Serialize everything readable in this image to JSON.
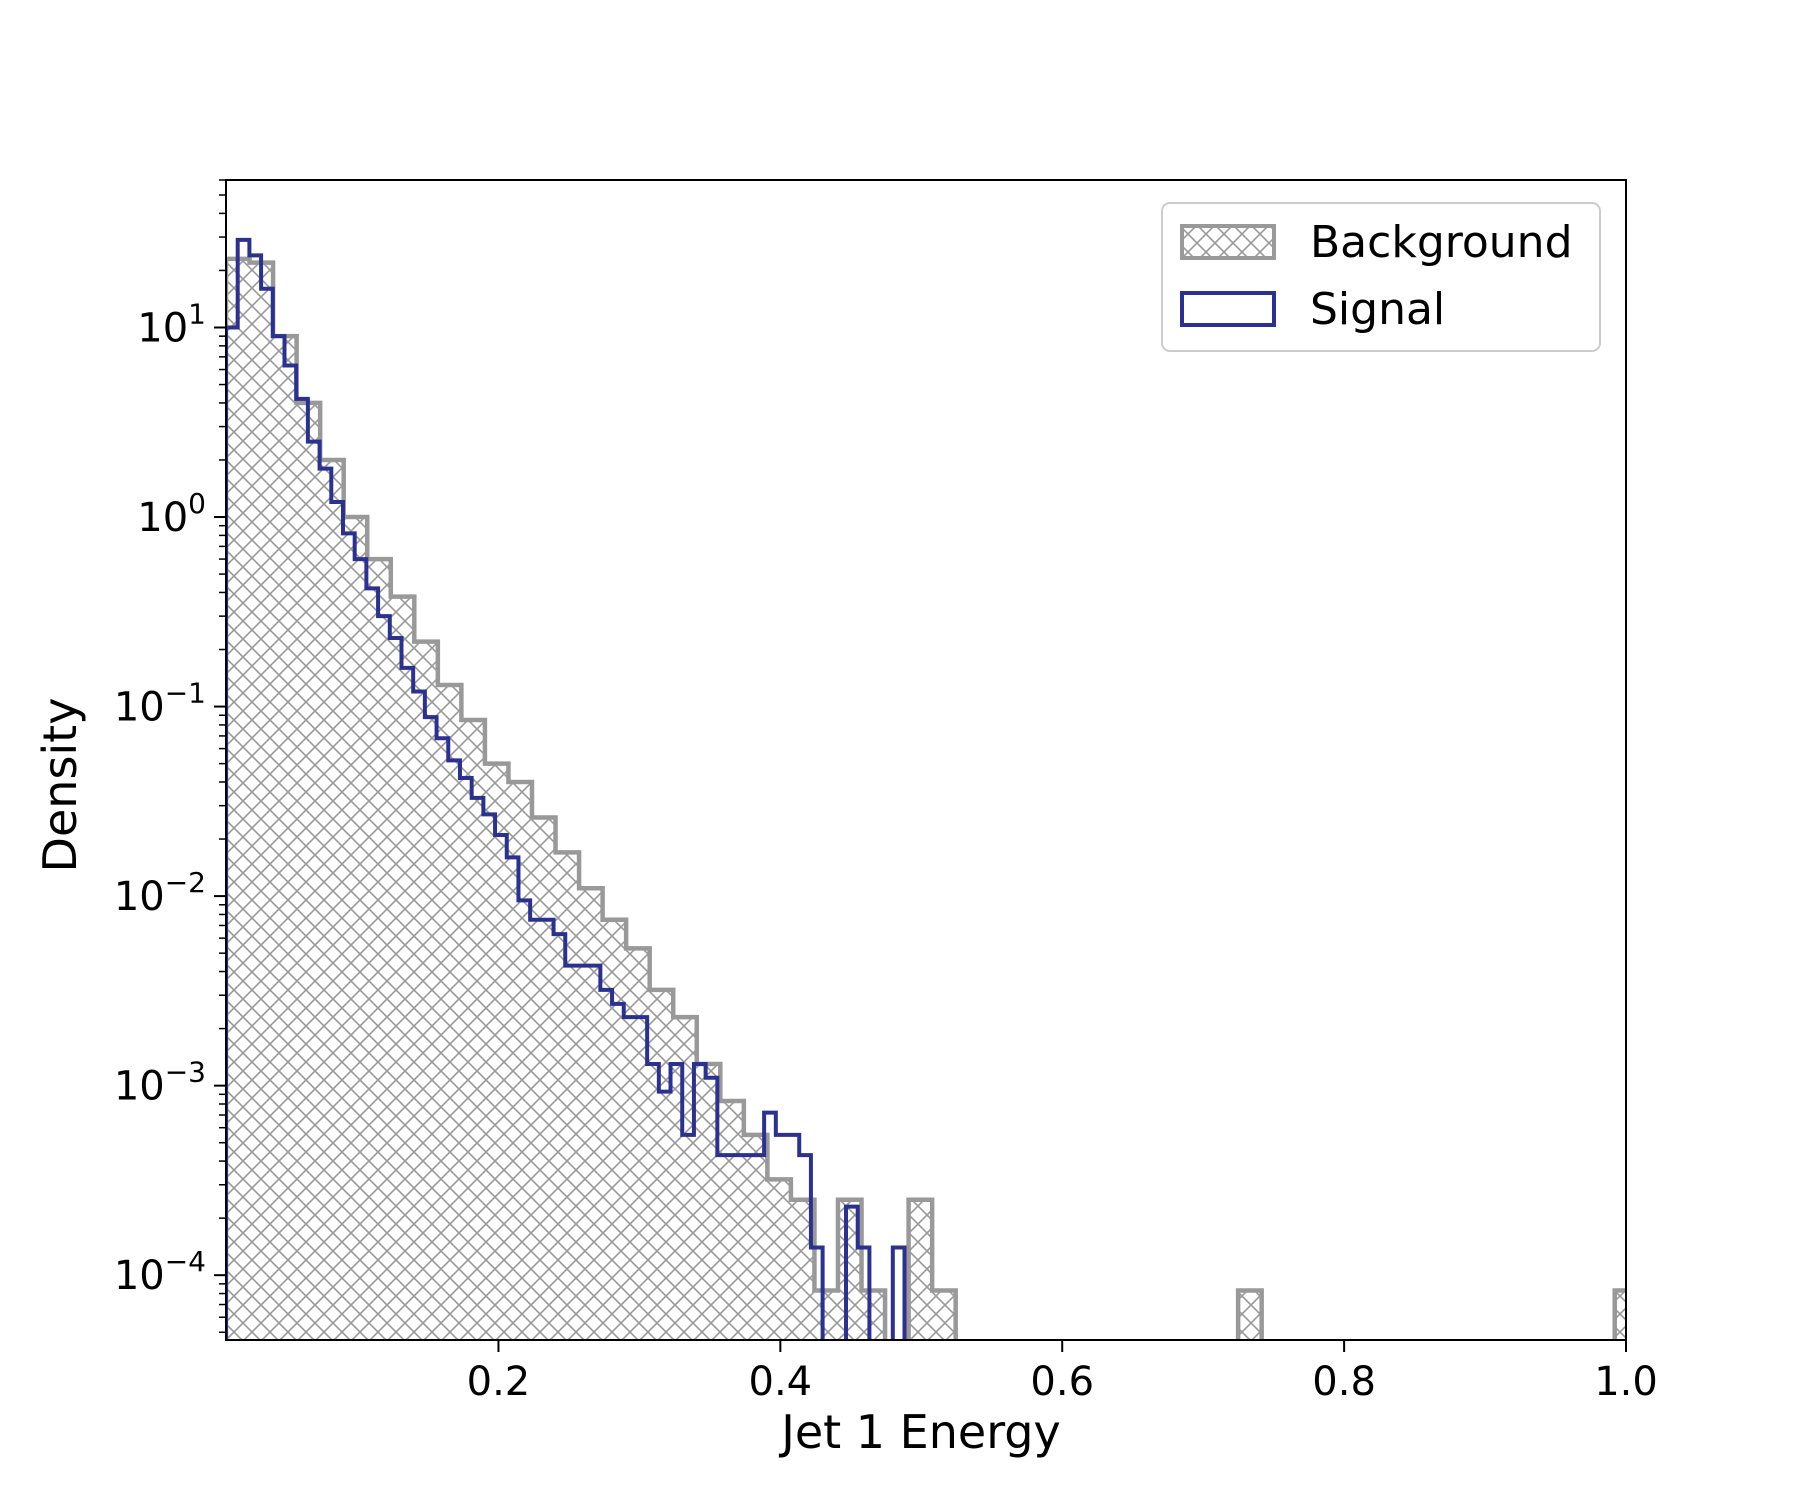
{
  "chart_data": {
    "type": "histogram",
    "xlabel": "Jet 1 Energy",
    "ylabel": "Density",
    "yscale": "log",
    "xlim": [
      0.0067,
      1.0
    ],
    "ylim": [
      4.55e-05,
      60
    ],
    "xticks": [
      {
        "value": 0.2,
        "label": "0.2"
      },
      {
        "value": 0.4,
        "label": "0.4"
      },
      {
        "value": 0.6,
        "label": "0.6"
      },
      {
        "value": 0.8,
        "label": "0.8"
      },
      {
        "value": 1.0,
        "label": "1.0"
      }
    ],
    "yticks": [
      {
        "value": 10,
        "base": "10",
        "exp": "1"
      },
      {
        "value": 1,
        "base": "10",
        "exp": "0"
      },
      {
        "value": 0.1,
        "base": "10",
        "exp": "−1"
      },
      {
        "value": 0.01,
        "base": "10",
        "exp": "−2"
      },
      {
        "value": 0.001,
        "base": "10",
        "exp": "−3"
      },
      {
        "value": 0.0001,
        "base": "10",
        "exp": "−4"
      }
    ],
    "legend": {
      "placement": "top-right"
    },
    "series": [
      {
        "name": "Background",
        "style": "hatched",
        "color": "#999999",
        "bin_start": 0.0067,
        "bin_width": 0.0167,
        "values": [
          23,
          22,
          9,
          4,
          2,
          1.0,
          0.6,
          0.38,
          0.22,
          0.13,
          0.085,
          0.05,
          0.04,
          0.026,
          0.017,
          0.011,
          0.0075,
          0.0053,
          0.0032,
          0.0023,
          0.0013,
          0.00083,
          0.00055,
          0.00032,
          0.00025,
          8.3e-05,
          0.00025,
          8.3e-05,
          0,
          0.00025,
          8.3e-05,
          0,
          0,
          0,
          0,
          0,
          0,
          0,
          0,
          0,
          0,
          0,
          0,
          8.3e-05,
          0,
          0,
          0,
          0,
          0,
          0,
          0,
          0,
          0,
          0,
          0,
          0,
          0,
          0,
          0,
          8.3e-05
        ]
      },
      {
        "name": "Signal",
        "style": "step",
        "color": "#2b3190",
        "bin_start": 0.0067,
        "bin_width": 0.0083,
        "values": [
          10,
          29,
          24,
          16,
          9,
          6.3,
          4.2,
          2.5,
          1.8,
          1.2,
          0.82,
          0.6,
          0.42,
          0.3,
          0.23,
          0.16,
          0.12,
          0.088,
          0.068,
          0.052,
          0.042,
          0.033,
          0.027,
          0.021,
          0.016,
          0.0095,
          0.0075,
          0.0075,
          0.0063,
          0.0043,
          0.0043,
          0.0043,
          0.0032,
          0.0027,
          0.0023,
          0.0023,
          0.0013,
          0.00093,
          0.0013,
          0.00055,
          0.0013,
          0.0011,
          0.00043,
          0.00043,
          0.00043,
          0.00043,
          0.00072,
          0.00055,
          0.00055,
          0.00043,
          0.00014,
          0,
          0,
          0.00023,
          0.00014,
          0,
          0,
          0.00014
        ]
      }
    ]
  }
}
